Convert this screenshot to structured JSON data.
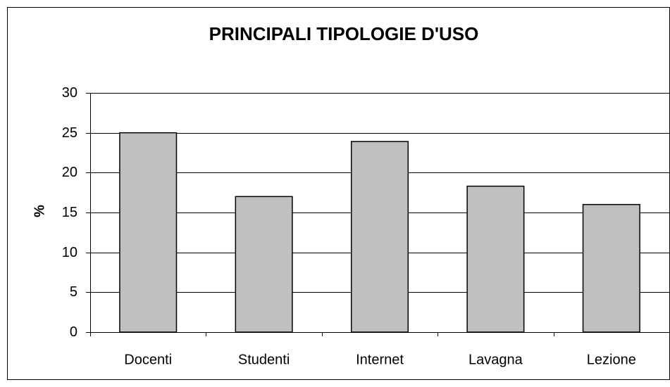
{
  "chart_data": {
    "type": "bar",
    "title": "PRINCIPALI TIPOLOGIE D'USO",
    "y_label": "%",
    "categories": [
      "Docenti",
      "Studenti",
      "Internet",
      "Lavagna",
      "Lezione"
    ],
    "values": [
      25,
      17,
      23.9,
      18.3,
      16
    ],
    "color": "#c0c0c0",
    "ylim": [
      0,
      30
    ],
    "yticks": [
      0,
      5,
      10,
      15,
      20,
      25,
      30
    ],
    "grid": true
  }
}
